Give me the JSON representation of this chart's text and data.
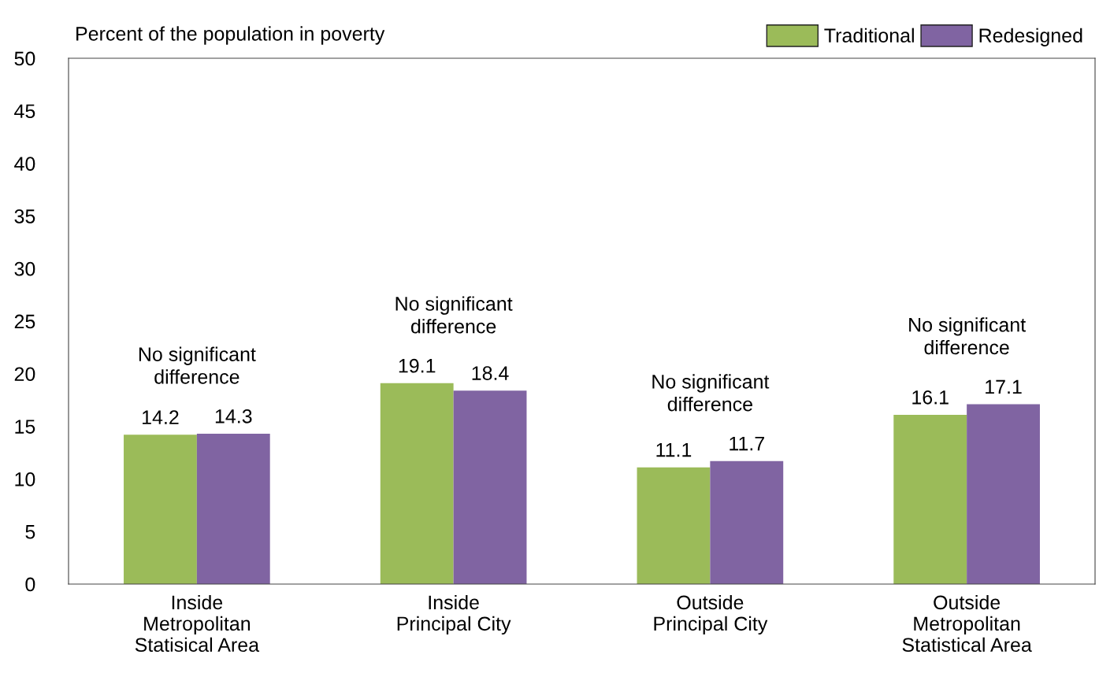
{
  "chart_data": {
    "type": "bar",
    "ylabel": "Percent of the population in poverty",
    "categories": [
      "Inside\nMetropolitan\nStatisical Area",
      "Inside\nPrincipal City",
      "Outside\nPrincipal City",
      "Outside\nMetropolitan\nStatistical Area"
    ],
    "series": [
      {
        "name": "Traditional",
        "color": "#9bbb59",
        "values": [
          14.2,
          19.1,
          11.1,
          16.1
        ]
      },
      {
        "name": "Redesigned",
        "color": "#8064a2",
        "values": [
          14.3,
          18.4,
          11.7,
          17.1
        ]
      }
    ],
    "annotations": [
      "No significant\ndifference",
      "No significant\ndifference",
      "No significant\ndifference",
      "No significant\ndifference"
    ],
    "ylim": [
      0,
      50
    ],
    "yticks": [
      0,
      5,
      10,
      15,
      20,
      25,
      30,
      35,
      40,
      45,
      50
    ],
    "data_labels": true,
    "grid": false,
    "legend": "top right"
  }
}
